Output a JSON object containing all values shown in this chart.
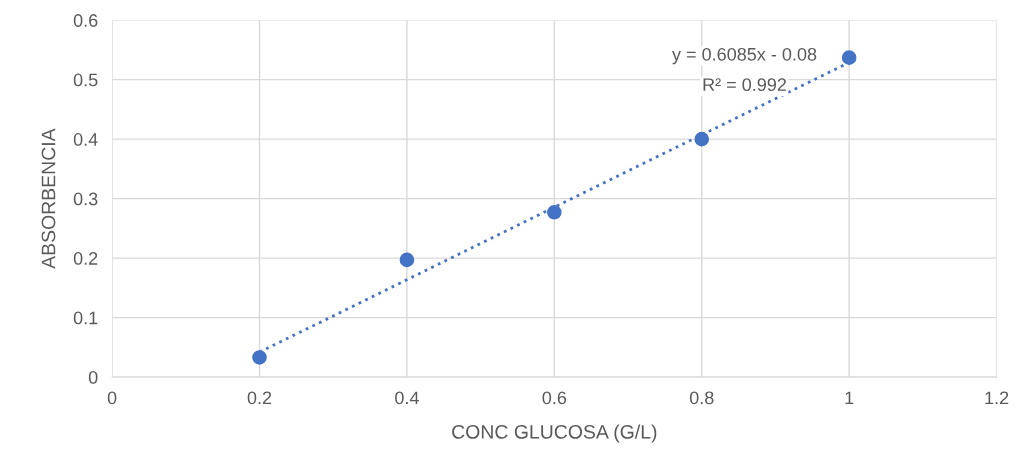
{
  "chart_data": {
    "type": "scatter",
    "xlabel": "CONC GLUCOSA (G/L)",
    "ylabel": "ABSORBENCIA",
    "xlim": [
      0,
      1.2
    ],
    "xticks": [
      0,
      0.2,
      0.4,
      0.6,
      0.8,
      1,
      1.2
    ],
    "ylim": [
      0,
      0.6
    ],
    "yticks": [
      0,
      0.1,
      0.2,
      0.3,
      0.4,
      0.5,
      0.6
    ],
    "grid": true,
    "marker": "circle",
    "series": [
      {
        "color": "#4472c4",
        "x": [
          0.2,
          0.4,
          0.6,
          0.8,
          1.0
        ],
        "values": [
          0.033,
          0.197,
          0.277,
          0.4,
          0.537
        ]
      },
      {
        "type": "line",
        "color": "#4472c4",
        "line_style": "dotted",
        "marker": "none",
        "x": [
          0.2,
          1.0
        ],
        "values": [
          0.042,
          0.529
        ]
      }
    ],
    "annotations": [
      "y = 0.6085x - 0.08",
      "R² = 0.992"
    ]
  }
}
